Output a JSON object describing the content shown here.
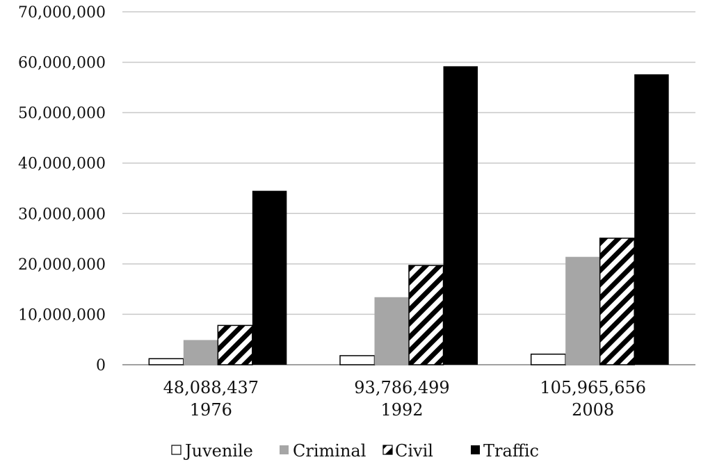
{
  "chart_data": {
    "type": "bar",
    "categories": [
      {
        "line1": "48,088,437",
        "line2": "1976"
      },
      {
        "line1": "93,786,499",
        "line2": "1992"
      },
      {
        "line1": "105,965,656",
        "line2": "2008"
      }
    ],
    "series": [
      {
        "name": "Juvenile",
        "style": "outline",
        "values": [
          1200000,
          1800000,
          2100000
        ]
      },
      {
        "name": "Criminal",
        "style": "gray",
        "color": "#a6a6a6",
        "values": [
          4900000,
          13400000,
          21400000
        ]
      },
      {
        "name": "Civil",
        "style": "hatch",
        "values": [
          7800000,
          19700000,
          25100000
        ]
      },
      {
        "name": "Traffic",
        "style": "solid",
        "color": "#000000",
        "values": [
          34500000,
          59200000,
          57600000
        ]
      }
    ],
    "ylim": [
      0,
      70000000
    ],
    "yticks": [
      0,
      10000000,
      20000000,
      30000000,
      40000000,
      50000000,
      60000000,
      70000000
    ],
    "ytick_labels": [
      "0",
      "10,000,000",
      "20,000,000",
      "30,000,000",
      "40,000,000",
      "50,000,000",
      "60,000,000",
      "70,000,000"
    ],
    "grid": true,
    "legend_position": "bottom"
  }
}
